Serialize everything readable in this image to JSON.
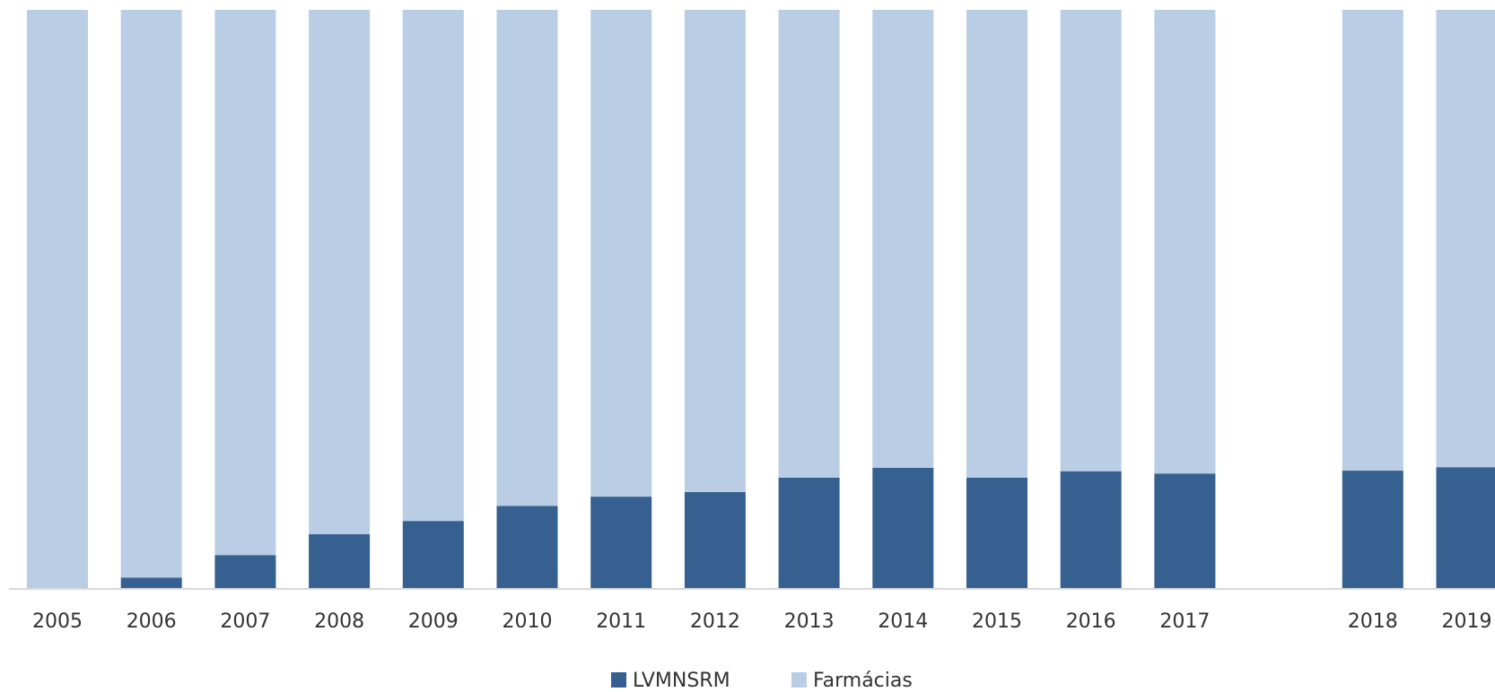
{
  "chart_data": {
    "type": "stacked_bar",
    "categories": [
      "2005",
      "2006",
      "2007",
      "2008",
      "2009",
      "2010",
      "2011",
      "2012",
      "2013",
      "2014",
      "2015",
      "2016",
      "2017",
      null,
      "2018",
      "2019"
    ],
    "series": [
      {
        "name": "LVMNSRM",
        "color": "#35608f",
        "values": [
          0.0,
          1.8,
          5.7,
          9.3,
          11.6,
          14.2,
          15.8,
          16.6,
          19.1,
          20.8,
          19.1,
          20.2,
          19.8,
          null,
          20.3,
          20.9
        ],
        "value_labels": [
          "0,0%",
          "1,8%",
          "5,7%",
          "9,3%",
          "11,6%",
          "14,2%",
          "15,8%",
          "16,6%",
          "19,1%",
          "20,8%",
          "19,1%",
          "20,2%",
          "19,8%",
          null,
          "20,3%",
          "20,9%"
        ]
      },
      {
        "name": "Farmácias",
        "color": "#b9cde5",
        "values": [
          100.0,
          98.2,
          94.3,
          90.7,
          88.4,
          85.8,
          84.2,
          83.4,
          80.9,
          79.2,
          80.9,
          79.8,
          80.2,
          null,
          79.7,
          79.1
        ]
      }
    ],
    "legend": "bottom"
  }
}
